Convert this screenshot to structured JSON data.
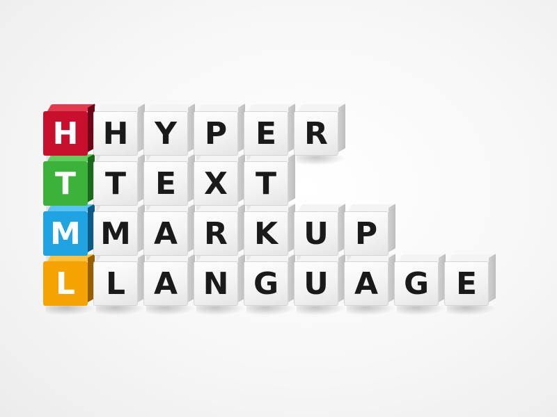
{
  "acronym": {
    "letters": [
      {
        "char": "H",
        "color": "#c8102e",
        "top_color": "#e23a4f",
        "side_color": "#8f0b20"
      },
      {
        "char": "T",
        "color": "#3bb33b",
        "top_color": "#61cc5b",
        "side_color": "#258a25"
      },
      {
        "char": "M",
        "color": "#1fa3e3",
        "top_color": "#58c3f0",
        "side_color": "#1378ad"
      },
      {
        "char": "L",
        "color": "#f5a300",
        "top_color": "#ffc13d",
        "side_color": "#c47f00"
      }
    ]
  },
  "words": [
    {
      "text": "HYPER"
    },
    {
      "text": "TEXT"
    },
    {
      "text": "MARKUP"
    },
    {
      "text": "LANGUAGE"
    }
  ]
}
